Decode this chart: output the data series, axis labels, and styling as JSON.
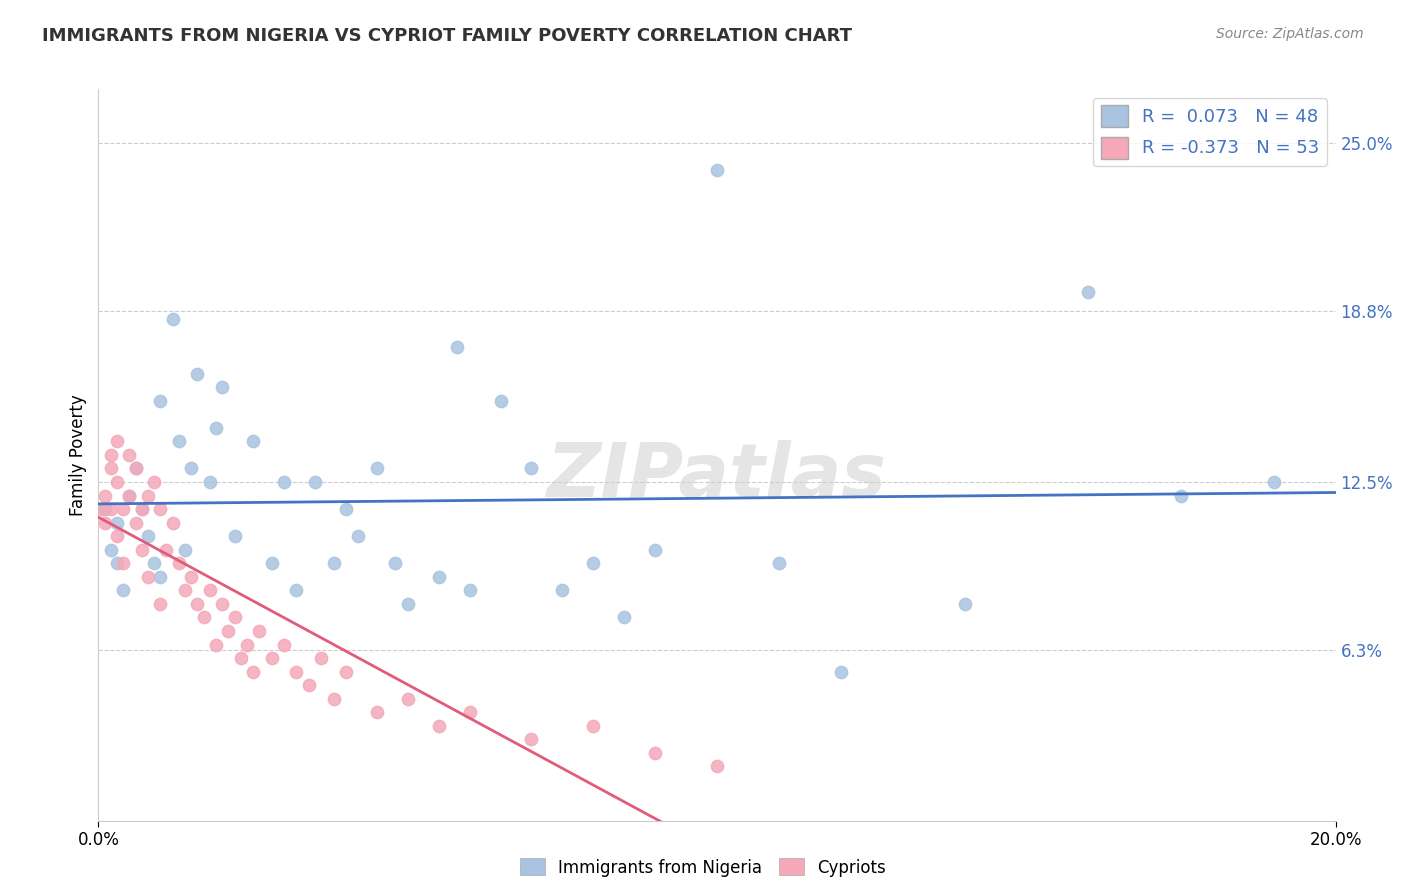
{
  "title": "IMMIGRANTS FROM NIGERIA VS CYPRIOT FAMILY POVERTY CORRELATION CHART",
  "source": "Source: ZipAtlas.com",
  "ylabel": "Family Poverty",
  "yticks": [
    0.063,
    0.125,
    0.188,
    0.25
  ],
  "ytick_labels": [
    "6.3%",
    "12.5%",
    "18.8%",
    "25.0%"
  ],
  "xmin": 0.0,
  "xmax": 0.2,
  "ymin": 0.0,
  "ymax": 0.27,
  "r1": 0.073,
  "n1": 48,
  "r2": -0.373,
  "n2": 53,
  "blue_color": "#a8c4e0",
  "pink_color": "#f4a8b8",
  "blue_line_color": "#4472c4",
  "pink_line_color": "#e05c7a",
  "legend_text_color": "#4472c4",
  "dot_size": 80,
  "watermark_text": "ZIPatlas",
  "legend1_label": "Immigrants from Nigeria",
  "legend2_label": "Cypriots",
  "nigeria_x": [
    0.001,
    0.002,
    0.003,
    0.003,
    0.004,
    0.005,
    0.006,
    0.007,
    0.008,
    0.009,
    0.01,
    0.01,
    0.012,
    0.013,
    0.014,
    0.015,
    0.016,
    0.018,
    0.019,
    0.02,
    0.022,
    0.025,
    0.028,
    0.03,
    0.032,
    0.035,
    0.038,
    0.04,
    0.042,
    0.045,
    0.048,
    0.05,
    0.055,
    0.058,
    0.06,
    0.065,
    0.07,
    0.075,
    0.08,
    0.085,
    0.09,
    0.1,
    0.11,
    0.12,
    0.14,
    0.16,
    0.175,
    0.19
  ],
  "nigeria_y": [
    0.115,
    0.1,
    0.11,
    0.095,
    0.085,
    0.12,
    0.13,
    0.115,
    0.105,
    0.095,
    0.155,
    0.09,
    0.185,
    0.14,
    0.1,
    0.13,
    0.165,
    0.125,
    0.145,
    0.16,
    0.105,
    0.14,
    0.095,
    0.125,
    0.085,
    0.125,
    0.095,
    0.115,
    0.105,
    0.13,
    0.095,
    0.08,
    0.09,
    0.175,
    0.085,
    0.155,
    0.13,
    0.085,
    0.095,
    0.075,
    0.1,
    0.24,
    0.095,
    0.055,
    0.08,
    0.195,
    0.12,
    0.125
  ],
  "cypriot_x": [
    0.0005,
    0.001,
    0.001,
    0.002,
    0.002,
    0.002,
    0.003,
    0.003,
    0.003,
    0.004,
    0.004,
    0.005,
    0.005,
    0.006,
    0.006,
    0.007,
    0.007,
    0.008,
    0.008,
    0.009,
    0.01,
    0.01,
    0.011,
    0.012,
    0.013,
    0.014,
    0.015,
    0.016,
    0.017,
    0.018,
    0.019,
    0.02,
    0.021,
    0.022,
    0.023,
    0.024,
    0.025,
    0.026,
    0.028,
    0.03,
    0.032,
    0.034,
    0.036,
    0.038,
    0.04,
    0.045,
    0.05,
    0.055,
    0.06,
    0.07,
    0.08,
    0.09,
    0.1
  ],
  "cypriot_y": [
    0.115,
    0.12,
    0.11,
    0.13,
    0.115,
    0.135,
    0.105,
    0.125,
    0.14,
    0.115,
    0.095,
    0.135,
    0.12,
    0.13,
    0.11,
    0.115,
    0.1,
    0.12,
    0.09,
    0.125,
    0.08,
    0.115,
    0.1,
    0.11,
    0.095,
    0.085,
    0.09,
    0.08,
    0.075,
    0.085,
    0.065,
    0.08,
    0.07,
    0.075,
    0.06,
    0.065,
    0.055,
    0.07,
    0.06,
    0.065,
    0.055,
    0.05,
    0.06,
    0.045,
    0.055,
    0.04,
    0.045,
    0.035,
    0.04,
    0.03,
    0.035,
    0.025,
    0.02
  ]
}
